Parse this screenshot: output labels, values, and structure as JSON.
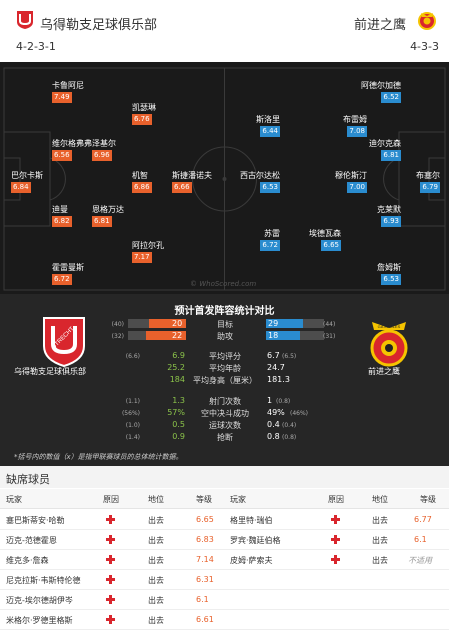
{
  "header": {
    "home_team": "乌得勒支足球俱乐部",
    "away_team": "前进之鹰",
    "home_formation": "4-2-3-1",
    "away_formation": "4-3-3"
  },
  "pitch": {
    "watermark": "© WhoScored.com",
    "home_players": [
      {
        "name": "卡鲁阿尼",
        "rating": "7.49"
      },
      {
        "name": "凯瑟琳",
        "rating": "6.76"
      },
      {
        "name": "维尔格弗弗",
        "rating": "6.56"
      },
      {
        "name": "泽基尔",
        "rating": "6.96"
      },
      {
        "name": "巴尔卡斯",
        "rating": "6.84"
      },
      {
        "name": "机智",
        "rating": "6.86"
      },
      {
        "name": "斯捷潘诺夫",
        "rating": "6.66"
      },
      {
        "name": "迪曼",
        "rating": "6.82"
      },
      {
        "name": "恩格万达",
        "rating": "6.81"
      },
      {
        "name": "阿拉尔孔",
        "rating": "7.17"
      },
      {
        "name": "霍雷曼斯",
        "rating": "6.72"
      }
    ],
    "away_players": [
      {
        "name": "阿德尔加德",
        "rating": "6.52"
      },
      {
        "name": "斯洛里",
        "rating": "6.44"
      },
      {
        "name": "布雷姆",
        "rating": "7.08"
      },
      {
        "name": "迪尔克森",
        "rating": "6.81"
      },
      {
        "name": "西古尔达松",
        "rating": "6.53"
      },
      {
        "name": "穆伦斯汀",
        "rating": "7.00"
      },
      {
        "name": "布塞尔",
        "rating": "6.79"
      },
      {
        "name": "克莱默",
        "rating": "6.93"
      },
      {
        "name": "苏雷",
        "rating": "6.72"
      },
      {
        "name": "埃德瓦森",
        "rating": "6.65"
      },
      {
        "name": "詹姆斯",
        "rating": "6.53"
      }
    ]
  },
  "comparison": {
    "title": "预计首发阵容统计对比",
    "home_crest_text": "UTRECHT",
    "away_crest_text": "GA EAGLES",
    "home_team": "乌得勒支足球俱乐部",
    "away_team": "前进之鹰",
    "bars": [
      {
        "label": "目标",
        "home": "20",
        "home_sub": "(40)",
        "away": "29",
        "away_sub": "(44)",
        "home_fill": 0.64,
        "away_fill": 0.64
      },
      {
        "label": "助攻",
        "home": "22",
        "home_sub": "(32)",
        "away": "18",
        "away_sub": "(31)",
        "home_fill": 0.69,
        "away_fill": 0.58
      }
    ],
    "rows": [
      {
        "label": "平均评分",
        "home": "6.9",
        "home_sub": "(6.6)",
        "away": "6.7",
        "away_sub": "(6.5)"
      },
      {
        "label": "平均年龄",
        "home": "25.2",
        "home_sub": "",
        "away": "24.7",
        "away_sub": ""
      },
      {
        "label": "平均身高（厘米）",
        "home": "184",
        "home_sub": "",
        "away": "181.3",
        "away_sub": ""
      },
      {
        "label": "射门次数",
        "home": "1.3",
        "home_sub": "(1.1)",
        "away": "1",
        "away_sub": "(0.8)"
      },
      {
        "label": "空中决斗成功",
        "home": "57%",
        "home_sub": "(56%)",
        "away": "49%",
        "away_sub": "(46%)"
      },
      {
        "label": "运球次数",
        "home": "0.5",
        "home_sub": "(1.0)",
        "away": "0.4",
        "away_sub": "(0.4)"
      },
      {
        "label": "抢断",
        "home": "0.9",
        "home_sub": "(1.4)",
        "away": "0.8",
        "away_sub": "(0.8)"
      }
    ],
    "footnote": "*括号内的数值（x）是指甲联赛球员的总体统计数据。"
  },
  "absent": {
    "title": "缺席球员",
    "headers": {
      "player": "玩家",
      "reason": "原因",
      "position": "地位",
      "rating": "等级"
    },
    "home": [
      {
        "player": "塞巴斯蒂安·哈勒",
        "status": "出去",
        "rating": "6.65"
      },
      {
        "player": "迈克-范德霍恩",
        "status": "出去",
        "rating": "6.83"
      },
      {
        "player": "维克多·詹森",
        "status": "出去",
        "rating": "7.14"
      },
      {
        "player": "尼克拉斯·韦斯特伦德",
        "status": "出去",
        "rating": "6.31"
      },
      {
        "player": "迈克-埃尔德胡伊岑",
        "status": "出去",
        "rating": "6.1"
      },
      {
        "player": "米格尔·罗德里格斯",
        "status": "出去",
        "rating": "6.61"
      }
    ],
    "away": [
      {
        "player": "格里特·瑞伯",
        "status": "出去",
        "rating": "6.77"
      },
      {
        "player": "罗宾·魏廷伯格",
        "status": "出去",
        "rating": "6.1"
      },
      {
        "player": "皮姆·萨索夫",
        "status": "出去",
        "rating": "不适用"
      }
    ]
  },
  "colors": {
    "home": "#e8612c",
    "away": "#2a8ccf",
    "positive": "#8bc34a"
  }
}
